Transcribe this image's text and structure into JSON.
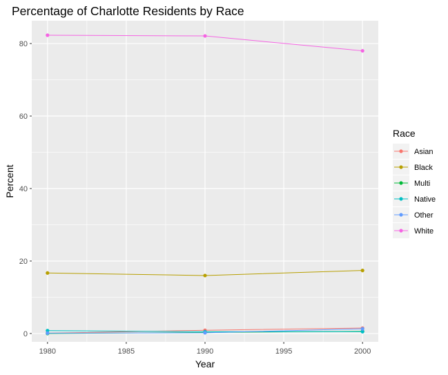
{
  "chart_data": {
    "type": "line",
    "title": "Percentage of Charlotte Residents by Race",
    "xlabel": "Year",
    "ylabel": "Percent",
    "x": [
      1980,
      1990,
      2000
    ],
    "xticks": [
      1980,
      1985,
      1990,
      1995,
      2000
    ],
    "yticks": [
      0,
      20,
      40,
      60,
      80
    ],
    "xlim": [
      1979,
      2001
    ],
    "ylim": [
      -2.3,
      86.3
    ],
    "grid": true,
    "legend": {
      "title": "Race",
      "position": "right"
    },
    "series": [
      {
        "name": "Asian",
        "color": "#F8766D",
        "values": [
          0.1,
          0.9,
          1.5
        ]
      },
      {
        "name": "Black",
        "color": "#B79F00",
        "values": [
          16.7,
          16.0,
          17.4
        ]
      },
      {
        "name": "Multi",
        "color": "#00BA38",
        "values": [
          0.0,
          0.3,
          0.6
        ]
      },
      {
        "name": "Native",
        "color": "#00BFC4",
        "values": [
          0.8,
          0.5,
          0.5
        ]
      },
      {
        "name": "Other",
        "color": "#619CFF",
        "values": [
          0.1,
          0.2,
          1.3
        ]
      },
      {
        "name": "White",
        "color": "#F564E3",
        "values": [
          82.3,
          82.1,
          78.0
        ]
      }
    ]
  }
}
